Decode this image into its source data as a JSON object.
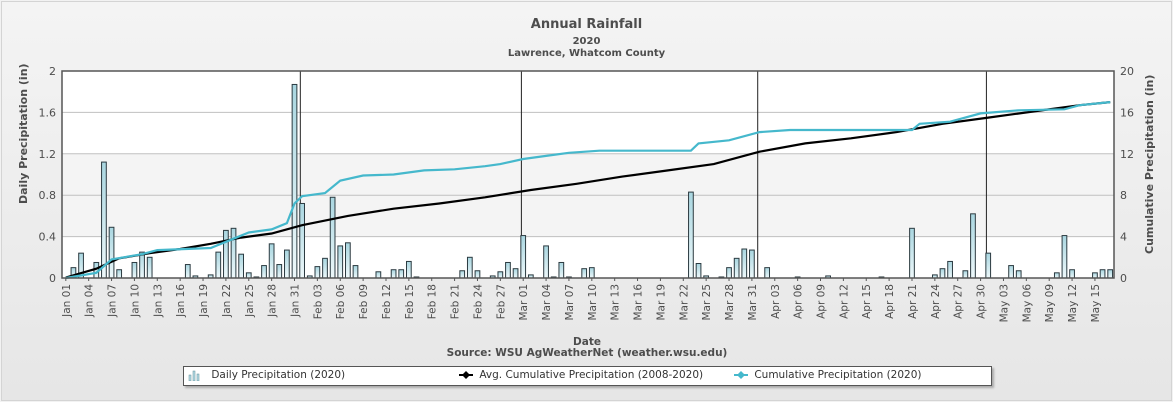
{
  "title": "Annual Rainfall",
  "subtitle": "2020",
  "location": "Lawrence, Whatcom County",
  "chart_data": {
    "type": "bar+line",
    "title": "Annual Rainfall",
    "subtitle": "2020",
    "location": "Lawrence, Whatcom County",
    "xlabel": "Date",
    "source": "Source: WSU AgWeatherNet (weather.wsu.edu)",
    "ylabel_left": "Daily Precipitation (in)",
    "ylabel_right": "Cumulative Precipitation (in)",
    "ylim_left": [
      0,
      2
    ],
    "ylim_right": [
      0,
      20
    ],
    "yticks_left": [
      "0",
      "0.4",
      "0.8",
      "1.2",
      "1.6",
      "2"
    ],
    "yticks_right": [
      "0",
      "4",
      "8",
      "12",
      "16",
      "20"
    ],
    "xticks": [
      "Jan 01",
      "Jan 04",
      "Jan 07",
      "Jan 10",
      "Jan 13",
      "Jan 16",
      "Jan 19",
      "Jan 22",
      "Jan 25",
      "Jan 28",
      "Jan 31",
      "Feb 03",
      "Feb 06",
      "Feb 09",
      "Feb 12",
      "Feb 15",
      "Feb 18",
      "Feb 21",
      "Feb 24",
      "Feb 27",
      "Mar 01",
      "Mar 04",
      "Mar 07",
      "Mar 10",
      "Mar 13",
      "Mar 16",
      "Mar 19",
      "Mar 22",
      "Mar 25",
      "Mar 28",
      "Mar 31",
      "Apr 03",
      "Apr 06",
      "Apr 09",
      "Apr 12",
      "Apr 15",
      "Apr 18",
      "Apr 21",
      "Apr 24",
      "Apr 27",
      "Apr 30",
      "May 03",
      "May 06",
      "May 09",
      "May 12",
      "May 15"
    ],
    "grid": true,
    "legend_position": "bottom",
    "legend": [
      "Daily Precipitation (2020)",
      "Avg. Cumulative Precipitation (2008-2020)",
      "Cumulative Precipitation (2020)"
    ],
    "colors": {
      "bar": "#b7dde6",
      "bar_edge": "#2b3a40",
      "avg": "#000000",
      "cum": "#45b8cc",
      "grid": "#c0c0c0",
      "axis": "#555555",
      "text": "#4d4d4d"
    },
    "daily_2020": [
      0,
      0.1,
      0.24,
      0,
      0.15,
      1.12,
      0.49,
      0.08,
      0,
      0.15,
      0.25,
      0.2,
      0,
      0,
      0,
      0,
      0.13,
      0.02,
      0,
      0.03,
      0.25,
      0.46,
      0.48,
      0.23,
      0.05,
      0.01,
      0.12,
      0.33,
      0.13,
      0.27,
      1.87,
      0.72,
      0.02,
      0.11,
      0.19,
      0.78,
      0.31,
      0.34,
      0.12,
      0,
      0,
      0.06,
      0,
      0.08,
      0.08,
      0.16,
      0.01,
      0,
      0,
      0,
      0,
      0,
      0.07,
      0.2,
      0.07,
      0,
      0.02,
      0.06,
      0.15,
      0.09,
      0.41,
      0.03,
      0,
      0.31,
      0.01,
      0.15,
      0.01,
      0,
      0.09,
      0.1,
      0,
      0,
      0,
      0,
      0,
      0,
      0,
      0,
      0,
      0,
      0,
      0,
      0.83,
      0.14,
      0.02,
      0,
      0.01,
      0.1,
      0.19,
      0.28,
      0.27,
      0,
      0.1,
      0,
      0,
      0,
      0.01,
      0,
      0,
      0,
      0.02,
      0,
      0,
      0,
      0,
      0,
      0,
      0.01,
      0,
      0,
      0,
      0.48,
      0,
      0,
      0.03,
      0.09,
      0.16,
      0,
      0.07,
      0.62,
      0,
      0.24,
      0,
      0,
      0.12,
      0.07,
      0,
      0,
      0,
      0,
      0.05,
      0.41,
      0.08,
      0,
      0,
      0.05,
      0.08,
      0.08
    ],
    "avg_cumulative": [
      [
        1,
        0.05
      ],
      [
        5,
        0.9
      ],
      [
        8,
        1.9
      ],
      [
        12,
        2.4
      ],
      [
        16,
        2.8
      ],
      [
        20,
        3.3
      ],
      [
        24,
        3.9
      ],
      [
        28,
        4.3
      ],
      [
        32,
        5.1
      ],
      [
        38,
        6.0
      ],
      [
        44,
        6.7
      ],
      [
        50,
        7.2
      ],
      [
        56,
        7.8
      ],
      [
        62,
        8.5
      ],
      [
        68,
        9.1
      ],
      [
        74,
        9.8
      ],
      [
        80,
        10.4
      ],
      [
        86,
        11.0
      ],
      [
        92,
        12.2
      ],
      [
        98,
        13.0
      ],
      [
        104,
        13.5
      ],
      [
        110,
        14.1
      ],
      [
        116,
        14.9
      ],
      [
        122,
        15.5
      ],
      [
        128,
        16.1
      ],
      [
        134,
        16.7
      ],
      [
        138,
        17.0
      ]
    ],
    "cumulative_2020": [
      [
        1,
        0
      ],
      [
        5,
        0.5
      ],
      [
        7,
        1.8
      ],
      [
        11,
        2.3
      ],
      [
        13,
        2.7
      ],
      [
        20,
        2.9
      ],
      [
        23,
        3.8
      ],
      [
        25,
        4.4
      ],
      [
        28,
        4.7
      ],
      [
        30,
        5.3
      ],
      [
        31,
        7.2
      ],
      [
        32,
        7.9
      ],
      [
        35,
        8.2
      ],
      [
        37,
        9.4
      ],
      [
        40,
        9.9
      ],
      [
        44,
        10.0
      ],
      [
        48,
        10.4
      ],
      [
        52,
        10.5
      ],
      [
        56,
        10.8
      ],
      [
        58,
        11.0
      ],
      [
        61,
        11.5
      ],
      [
        64,
        11.8
      ],
      [
        67,
        12.1
      ],
      [
        71,
        12.3
      ],
      [
        83,
        12.3
      ],
      [
        84,
        13.0
      ],
      [
        88,
        13.3
      ],
      [
        92,
        14.1
      ],
      [
        96,
        14.3
      ],
      [
        112,
        14.3
      ],
      [
        113,
        14.9
      ],
      [
        117,
        15.1
      ],
      [
        121,
        15.9
      ],
      [
        126,
        16.2
      ],
      [
        132,
        16.3
      ],
      [
        134,
        16.7
      ],
      [
        138,
        17.0
      ]
    ]
  }
}
